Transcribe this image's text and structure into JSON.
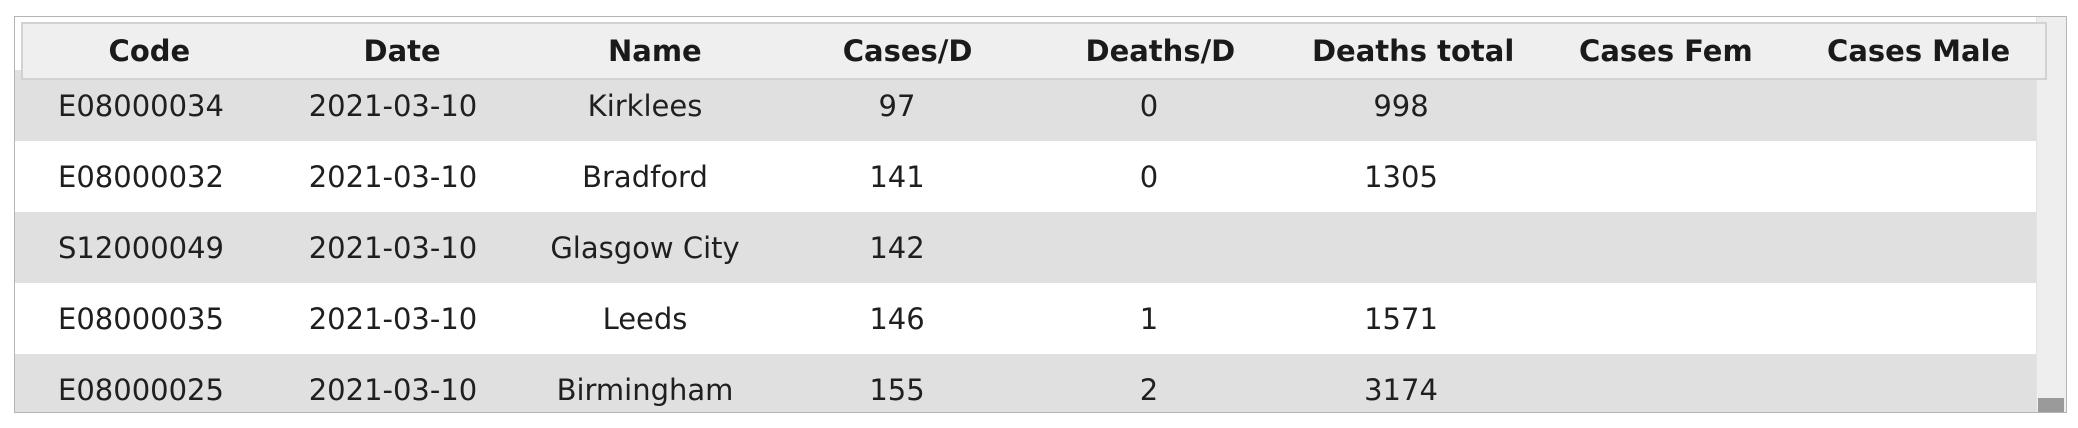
{
  "table": {
    "columns": [
      "Code",
      "Date",
      "Name",
      "Cases/D",
      "Deaths/D",
      "Deaths total",
      "Cases Fem",
      "Cases Male"
    ],
    "rows": [
      [
        "E08000034",
        "2021-03-10",
        "Kirklees",
        "97",
        "0",
        "998",
        "",
        ""
      ],
      [
        "E08000032",
        "2021-03-10",
        "Bradford",
        "141",
        "0",
        "1305",
        "",
        ""
      ],
      [
        "S12000049",
        "2021-03-10",
        "Glasgow City",
        "142",
        "",
        "",
        "",
        ""
      ],
      [
        "E08000035",
        "2021-03-10",
        "Leeds",
        "146",
        "1",
        "1571",
        "",
        ""
      ],
      [
        "E08000025",
        "2021-03-10",
        "Birmingham",
        "155",
        "2",
        "3174",
        "",
        ""
      ]
    ]
  },
  "colors": {
    "row_shaded": "#e0e0e0",
    "row_plain": "#ffffff",
    "header_bg": "#efefef"
  }
}
